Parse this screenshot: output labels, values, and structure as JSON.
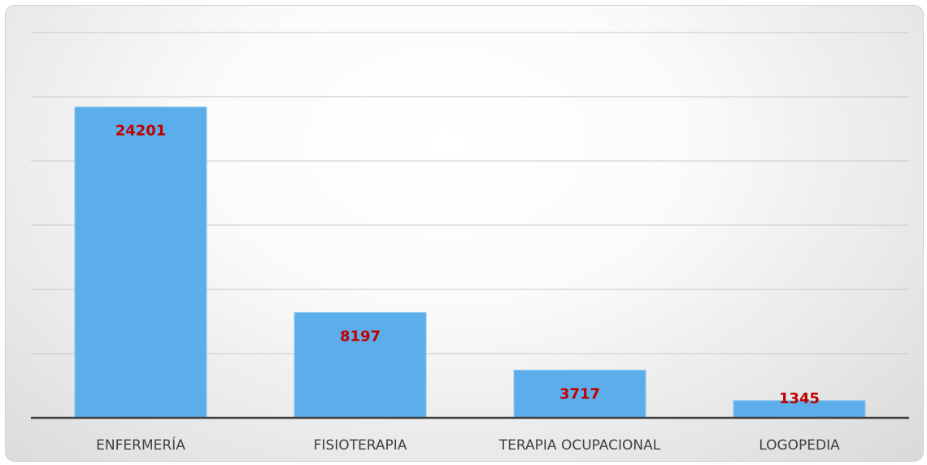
{
  "chart_data": {
    "type": "bar",
    "categories": [
      "ENFERMERÍA",
      "FISIOTERAPIA",
      "TERAPIA OCUPACIONAL",
      "LOGOPEDIA"
    ],
    "values": [
      24201,
      8197,
      3717,
      1345
    ],
    "color": "#5caeeb",
    "label_color": "#c00000",
    "ylim": [
      0,
      30000
    ],
    "yticks": [
      0,
      5000,
      10000,
      15000,
      20000,
      25000,
      30000
    ],
    "grid": true
  }
}
